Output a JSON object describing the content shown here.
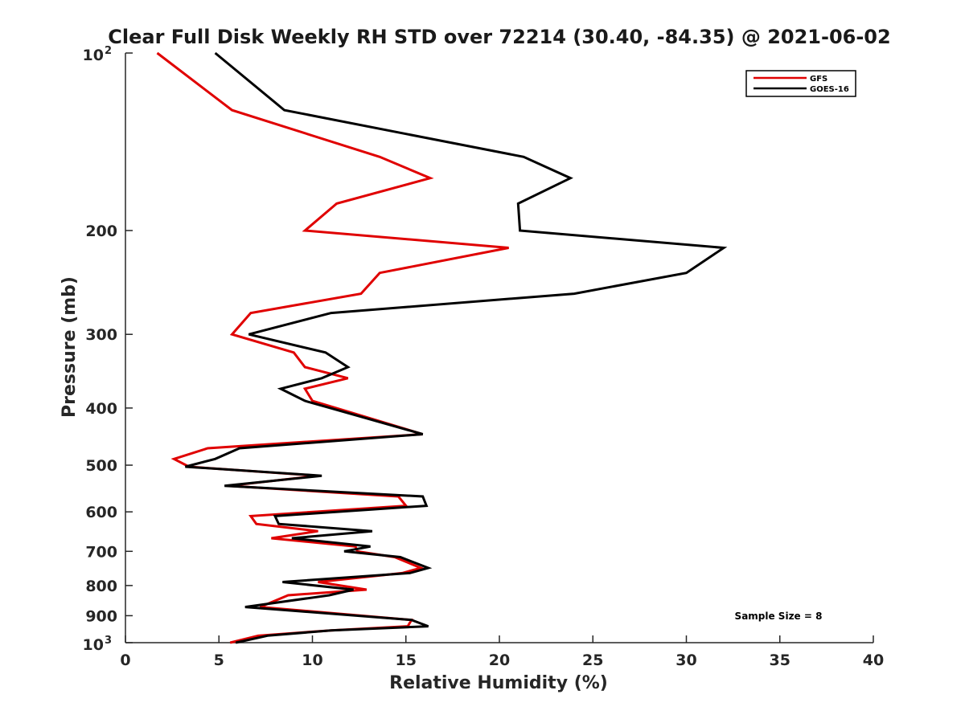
{
  "chart_data": {
    "type": "line",
    "title": "Clear Full Disk Weekly RH STD over 72214 (30.40, -84.35) @ 2021-06-02",
    "xlabel": "Relative Humidity (%)",
    "ylabel": "Pressure (mb)",
    "xlim": [
      0,
      40
    ],
    "ylim": [
      100,
      1000
    ],
    "yscale": "log",
    "y_reversed": true,
    "xticks": [
      0,
      5,
      10,
      15,
      20,
      25,
      30,
      35,
      40
    ],
    "xtick_labels": [
      "0",
      "5",
      "10",
      "15",
      "20",
      "25",
      "30",
      "35",
      "40"
    ],
    "yticks": [
      200,
      300,
      400,
      500,
      600,
      700,
      800,
      900
    ],
    "ytick_labels": [
      "200",
      "300",
      "400",
      "500",
      "600",
      "700",
      "800",
      "900"
    ],
    "ytick_power_labels": [
      {
        "value": 100,
        "base": "10",
        "exp": "2"
      },
      {
        "value": 1000,
        "base": "10",
        "exp": "3"
      }
    ],
    "grid": false,
    "legend_position": "top-right",
    "annotation": "Sample Size = 8",
    "series": [
      {
        "name": "GFS",
        "color": "#e00000",
        "points": [
          [
            1.7,
            100
          ],
          [
            5.7,
            125
          ],
          [
            13.6,
            150
          ],
          [
            16.3,
            163
          ],
          [
            11.3,
            180
          ],
          [
            9.6,
            200
          ],
          [
            20.5,
            214
          ],
          [
            13.6,
            236
          ],
          [
            12.6,
            256
          ],
          [
            6.7,
            276
          ],
          [
            5.7,
            300
          ],
          [
            9.0,
            322
          ],
          [
            9.6,
            341
          ],
          [
            11.9,
            356
          ],
          [
            9.6,
            371
          ],
          [
            10.0,
            389
          ],
          [
            15.9,
            443
          ],
          [
            4.4,
            468
          ],
          [
            2.6,
            488
          ],
          [
            3.4,
            503
          ],
          [
            10.3,
            521
          ],
          [
            5.5,
            542
          ],
          [
            14.6,
            565
          ],
          [
            15.0,
            586
          ],
          [
            6.7,
            610
          ],
          [
            7.0,
            629
          ],
          [
            10.3,
            647
          ],
          [
            7.8,
            665
          ],
          [
            12.3,
            687
          ],
          [
            12.4,
            700
          ],
          [
            14.4,
            716
          ],
          [
            15.8,
            747
          ],
          [
            14.8,
            762
          ],
          [
            10.3,
            789
          ],
          [
            12.9,
            813
          ],
          [
            8.7,
            831
          ],
          [
            7.2,
            870
          ],
          [
            15.3,
            915
          ],
          [
            15.1,
            938
          ],
          [
            11.0,
            953
          ],
          [
            7.1,
            973
          ],
          [
            5.6,
            1000
          ]
        ]
      },
      {
        "name": "GOES-16",
        "color": "#000000",
        "points": [
          [
            4.8,
            100
          ],
          [
            8.5,
            125
          ],
          [
            21.3,
            150
          ],
          [
            23.8,
            163
          ],
          [
            21.0,
            180
          ],
          [
            21.1,
            200
          ],
          [
            32.0,
            214
          ],
          [
            30.0,
            236
          ],
          [
            24.0,
            256
          ],
          [
            11.0,
            276
          ],
          [
            6.6,
            300
          ],
          [
            10.7,
            322
          ],
          [
            11.9,
            341
          ],
          [
            10.5,
            356
          ],
          [
            8.3,
            371
          ],
          [
            9.6,
            389
          ],
          [
            15.9,
            443
          ],
          [
            6.1,
            468
          ],
          [
            4.8,
            488
          ],
          [
            3.2,
            503
          ],
          [
            10.5,
            521
          ],
          [
            5.3,
            542
          ],
          [
            15.9,
            565
          ],
          [
            16.1,
            586
          ],
          [
            8.0,
            610
          ],
          [
            8.2,
            629
          ],
          [
            13.2,
            647
          ],
          [
            8.9,
            665
          ],
          [
            13.1,
            687
          ],
          [
            11.7,
            700
          ],
          [
            14.7,
            716
          ],
          [
            16.2,
            747
          ],
          [
            15.2,
            762
          ],
          [
            8.4,
            789
          ],
          [
            12.2,
            813
          ],
          [
            10.9,
            831
          ],
          [
            6.4,
            870
          ],
          [
            15.3,
            915
          ],
          [
            16.2,
            938
          ],
          [
            11.0,
            953
          ],
          [
            7.6,
            973
          ],
          [
            5.9,
            1000
          ]
        ]
      }
    ]
  }
}
